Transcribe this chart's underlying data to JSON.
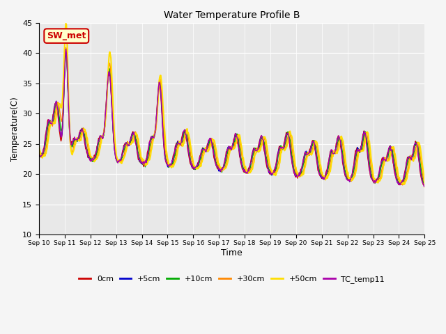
{
  "title": "Water Temperature Profile B",
  "xlabel": "Time",
  "ylabel": "Temperature(C)",
  "ylim": [
    10,
    45
  ],
  "yticks": [
    10,
    15,
    20,
    25,
    30,
    35,
    40,
    45
  ],
  "background_color": "#f5f5f5",
  "plot_bg_color": "#e8e8e8",
  "series": {
    "0cm": {
      "color": "#cc0000",
      "lw": 1.0
    },
    "+5cm": {
      "color": "#0000cc",
      "lw": 1.0
    },
    "+10cm": {
      "color": "#00aa00",
      "lw": 1.0
    },
    "+30cm": {
      "color": "#ff8800",
      "lw": 1.0
    },
    "+50cm": {
      "color": "#ffdd00",
      "lw": 1.5
    },
    "TC_temp11": {
      "color": "#aa00aa",
      "lw": 1.0
    }
  },
  "annotation": {
    "text": "SW_met",
    "facecolor": "#ffffcc",
    "edgecolor": "#cc0000",
    "textcolor": "#cc0000",
    "fontsize": 9,
    "fontweight": "bold"
  },
  "n_days": 15,
  "start_day": 10,
  "legend_order": [
    "0cm",
    "+5cm",
    "+10cm",
    "+30cm",
    "+50cm",
    "TC_temp11"
  ],
  "figsize": [
    6.4,
    4.8
  ],
  "dpi": 100
}
